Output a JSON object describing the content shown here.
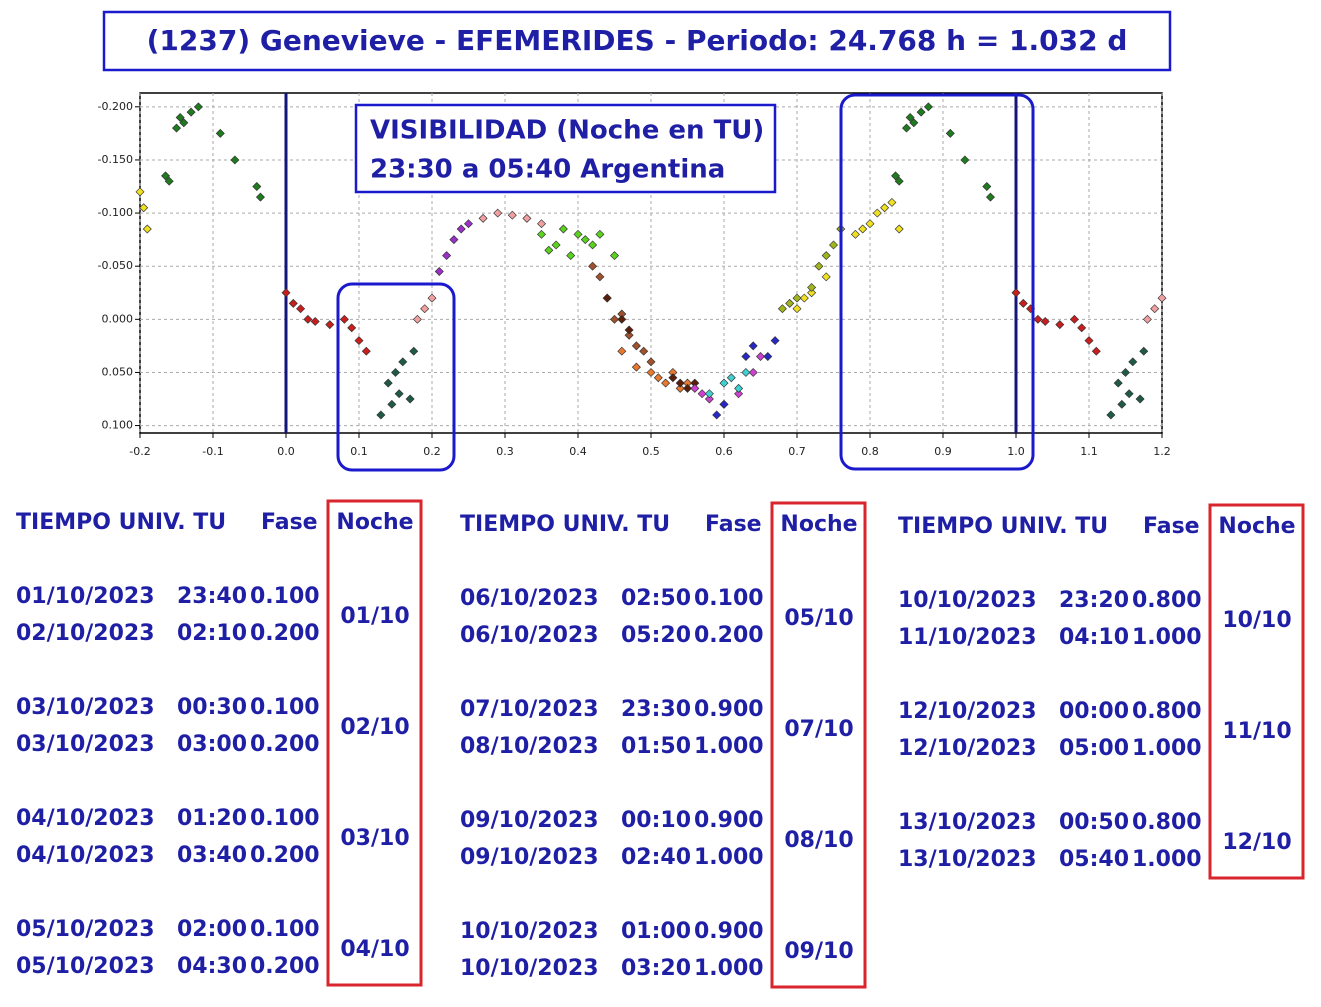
{
  "title": "(1237) Genevieve - EFEMERIDES - Periodo: 24.768 h = 1.032 d",
  "chart_data": {
    "type": "scatter",
    "invert_y": true,
    "grid": true,
    "xlim": [
      -0.2,
      1.2
    ],
    "ylim": [
      -0.213,
      0.107
    ],
    "xticks": [
      -0.2,
      -0.1,
      {
        "value": 0,
        "label": "0.0"
      },
      0.1,
      0.2,
      0.3,
      0.4,
      0.5,
      0.6,
      0.7,
      0.8,
      0.9,
      {
        "value": 1,
        "label": "1.0"
      },
      1.1,
      1.2
    ],
    "yticks": [
      {
        "value": -0.2,
        "label": "-0.200"
      },
      {
        "value": -0.15,
        "label": "-0.150"
      },
      {
        "value": -0.1,
        "label": "-0.100"
      },
      {
        "value": -0.05,
        "label": "-0.050"
      },
      {
        "value": 0,
        "label": "0.000"
      },
      {
        "value": 0.05,
        "label": "0.050"
      },
      {
        "value": 0.1,
        "label": "0.100"
      }
    ],
    "vlines": [
      0,
      1
    ],
    "annotation": [
      "VISIBILIDAD (Noche en TU)",
      "23:30 a 05:40 Argentina"
    ],
    "series": [
      {
        "color": "#1e7b1e",
        "x": [
          -0.165,
          -0.16,
          -0.15,
          -0.145,
          -0.14,
          -0.13,
          -0.12,
          -0.09,
          -0.07,
          -0.04,
          -0.035,
          0.835,
          0.84,
          0.85,
          0.855,
          0.86,
          0.87,
          0.88,
          0.91,
          0.93,
          0.96,
          0.965
        ],
        "values": [
          -0.135,
          -0.13,
          -0.18,
          -0.19,
          -0.185,
          -0.195,
          -0.2,
          -0.175,
          -0.15,
          -0.125,
          -0.115,
          -0.135,
          -0.13,
          -0.18,
          -0.19,
          -0.185,
          -0.195,
          -0.2,
          -0.175,
          -0.15,
          -0.125,
          -0.115
        ]
      },
      {
        "color": "#f0e020",
        "x": [
          -0.2,
          -0.195,
          -0.19,
          0.7,
          0.71,
          0.72,
          0.74,
          0.78,
          0.79,
          0.8,
          0.81,
          0.82,
          0.83,
          0.84
        ],
        "values": [
          -0.12,
          -0.105,
          -0.085,
          -0.01,
          -0.02,
          -0.025,
          -0.04,
          -0.08,
          -0.085,
          -0.09,
          -0.1,
          -0.105,
          -0.11,
          -0.085
        ]
      },
      {
        "color": "#c81e1e",
        "x": [
          0,
          0.01,
          0.02,
          0.03,
          0.04,
          0.06,
          0.08,
          0.09,
          0.1,
          0.11,
          1,
          1.01,
          1.02,
          1.03,
          1.04,
          1.06,
          1.08,
          1.09,
          1.1,
          1.11
        ],
        "values": [
          -0.025,
          -0.015,
          -0.01,
          0,
          0.002,
          0.005,
          0,
          0.008,
          0.02,
          0.03,
          -0.025,
          -0.015,
          -0.01,
          0,
          0.002,
          0.005,
          0,
          0.008,
          0.02,
          0.03
        ]
      },
      {
        "color": "#1e5a46",
        "x": [
          0.13,
          0.14,
          0.145,
          0.15,
          0.155,
          0.16,
          0.17,
          0.175,
          1.13,
          1.14,
          1.145,
          1.15,
          1.155,
          1.16,
          1.17,
          1.175
        ],
        "values": [
          0.09,
          0.06,
          0.08,
          0.05,
          0.07,
          0.04,
          0.075,
          0.03,
          0.09,
          0.06,
          0.08,
          0.05,
          0.07,
          0.04,
          0.075,
          0.03
        ]
      },
      {
        "color": "#f0a0a0",
        "x": [
          0.18,
          0.19,
          0.2,
          0.27,
          0.29,
          0.31,
          0.33,
          0.35,
          1.18,
          1.19,
          1.2
        ],
        "values": [
          0,
          -0.01,
          -0.02,
          -0.095,
          -0.1,
          -0.098,
          -0.095,
          -0.09,
          0,
          -0.01,
          -0.02
        ]
      },
      {
        "color": "#9a30c8",
        "x": [
          0.21,
          0.22,
          0.23,
          0.24,
          0.25
        ],
        "values": [
          -0.045,
          -0.06,
          -0.075,
          -0.085,
          -0.09
        ]
      },
      {
        "color": "#5ad21e",
        "x": [
          0.35,
          0.36,
          0.37,
          0.38,
          0.39,
          0.4,
          0.41,
          0.42,
          0.43,
          0.45
        ],
        "values": [
          -0.08,
          -0.065,
          -0.07,
          -0.085,
          -0.06,
          -0.08,
          -0.075,
          -0.07,
          -0.08,
          -0.06
        ]
      },
      {
        "color": "#a0522d",
        "x": [
          0.42,
          0.43,
          0.44,
          0.45,
          0.46,
          0.47,
          0.48,
          0.49,
          0.5
        ],
        "values": [
          -0.05,
          -0.04,
          -0.02,
          0,
          -0.005,
          0.015,
          0.025,
          0.03,
          0.04
        ]
      },
      {
        "color": "#e87830",
        "x": [
          0.46,
          0.48,
          0.5,
          0.51,
          0.52,
          0.53,
          0.54,
          0.55
        ],
        "values": [
          0.03,
          0.045,
          0.05,
          0.055,
          0.06,
          0.05,
          0.065,
          0.06
        ]
      },
      {
        "color": "#5a1e0a",
        "x": [
          0.44,
          0.46,
          0.47,
          0.53,
          0.54,
          0.55,
          0.56
        ],
        "values": [
          -0.02,
          0,
          0.01,
          0.055,
          0.06,
          0.065,
          0.06
        ]
      },
      {
        "color": "#d040d0",
        "x": [
          0.56,
          0.57,
          0.58,
          0.6,
          0.62,
          0.64,
          0.65
        ],
        "values": [
          0.065,
          0.07,
          0.075,
          0.08,
          0.07,
          0.05,
          0.035
        ]
      },
      {
        "color": "#40d0d0",
        "x": [
          0.58,
          0.6,
          0.61,
          0.62,
          0.63
        ],
        "values": [
          0.07,
          0.06,
          0.055,
          0.065,
          0.05
        ]
      },
      {
        "color": "#2828c8",
        "x": [
          0.59,
          0.6,
          0.63,
          0.64,
          0.66,
          0.67
        ],
        "values": [
          0.09,
          0.08,
          0.035,
          0.025,
          0.035,
          0.02
        ]
      },
      {
        "color": "#a0b41e",
        "x": [
          0.68,
          0.69,
          0.7,
          0.72,
          0.73,
          0.74,
          0.75,
          0.76
        ],
        "values": [
          -0.01,
          -0.015,
          -0.02,
          -0.03,
          -0.05,
          -0.06,
          -0.07,
          -0.085
        ]
      }
    ]
  },
  "tables": [
    {
      "header": [
        "TIEMPO UNIV. TU",
        "Fase",
        "Noche"
      ],
      "groups": [
        {
          "rows": [
            [
              "01/10/2023",
              "23:40",
              "0.100"
            ],
            [
              "02/10/2023",
              "02:10",
              "0.200"
            ]
          ],
          "night": "01/10"
        },
        {
          "rows": [
            [
              "03/10/2023",
              "00:30",
              "0.100"
            ],
            [
              "03/10/2023",
              "03:00",
              "0.200"
            ]
          ],
          "night": "02/10"
        },
        {
          "rows": [
            [
              "04/10/2023",
              "01:20",
              "0.100"
            ],
            [
              "04/10/2023",
              "03:40",
              "0.200"
            ]
          ],
          "night": "03/10"
        },
        {
          "rows": [
            [
              "05/10/2023",
              "02:00",
              "0.100"
            ],
            [
              "05/10/2023",
              "04:30",
              "0.200"
            ]
          ],
          "night": "04/10"
        }
      ]
    },
    {
      "header": [
        "TIEMPO UNIV. TU",
        "Fase",
        "Noche"
      ],
      "groups": [
        {
          "rows": [
            [
              "06/10/2023",
              "02:50",
              "0.100"
            ],
            [
              "06/10/2023",
              "05:20",
              "0.200"
            ]
          ],
          "night": "05/10"
        },
        {
          "rows": [
            [
              "07/10/2023",
              "23:30",
              "0.900"
            ],
            [
              "08/10/2023",
              "01:50",
              "1.000"
            ]
          ],
          "night": "07/10"
        },
        {
          "rows": [
            [
              "09/10/2023",
              "00:10",
              "0.900"
            ],
            [
              "09/10/2023",
              "02:40",
              "1.000"
            ]
          ],
          "night": "08/10"
        },
        {
          "rows": [
            [
              "10/10/2023",
              "01:00",
              "0.900"
            ],
            [
              "10/10/2023",
              "03:20",
              "1.000"
            ]
          ],
          "night": "09/10"
        }
      ]
    },
    {
      "header": [
        "TIEMPO UNIV. TU",
        "Fase",
        "Noche"
      ],
      "groups": [
        {
          "rows": [
            [
              "10/10/2023",
              "23:20",
              "0.800"
            ],
            [
              "11/10/2023",
              "04:10",
              "1.000"
            ]
          ],
          "night": "10/10"
        },
        {
          "rows": [
            [
              "12/10/2023",
              "00:00",
              "0.800"
            ],
            [
              "12/10/2023",
              "05:00",
              "1.000"
            ]
          ],
          "night": "11/10"
        },
        {
          "rows": [
            [
              "13/10/2023",
              "00:50",
              "0.800"
            ],
            [
              "13/10/2023",
              "05:40",
              "1.000"
            ]
          ],
          "night": "12/10"
        }
      ]
    }
  ]
}
